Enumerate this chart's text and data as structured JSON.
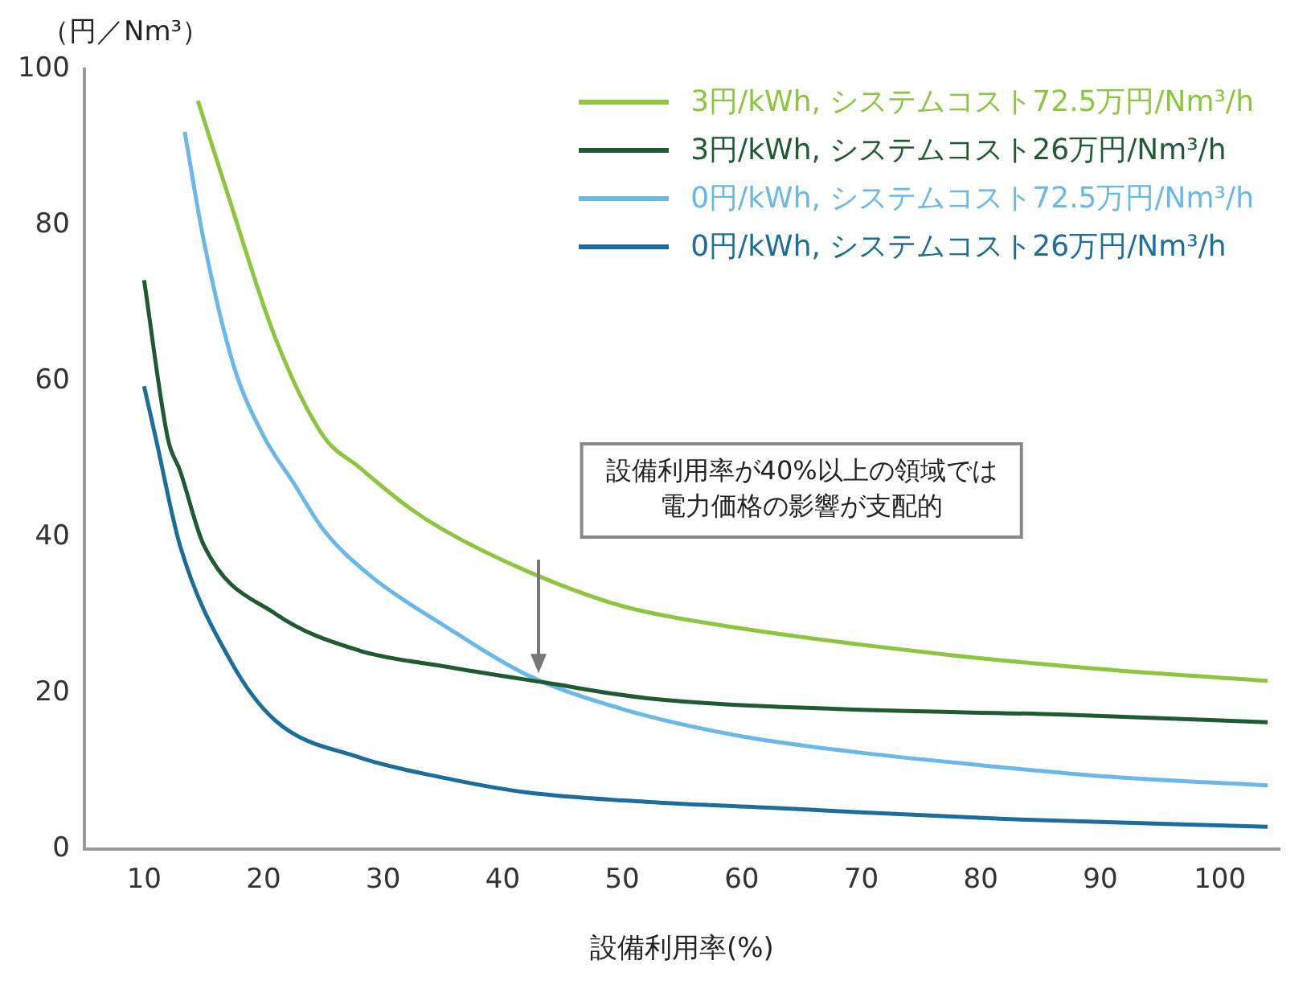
{
  "chart_data": {
    "type": "line",
    "ylabel": "（円／Nm³）",
    "xlabel": "設備利用率(%)",
    "xlim": [
      5,
      105
    ],
    "xticks": [
      10,
      20,
      30,
      40,
      50,
      60,
      70,
      80,
      90,
      100
    ],
    "ylim": [
      0,
      100
    ],
    "yticks": [
      0,
      20,
      40,
      60,
      80,
      100
    ],
    "grid": false,
    "legend": "top right",
    "marker": "none",
    "line_style": "solid",
    "annotations": [
      "設備利用率が40%以上の領域では電力価格の影響が支配的"
    ],
    "series": [
      {
        "name": "3円/kWh, システムコスト72.5万円/Nm³/h",
        "color": "#8cc63f",
        "x": [
          14.5,
          17,
          21,
          25,
          28,
          32,
          35,
          42,
          50,
          58,
          77,
          91,
          104
        ],
        "values": [
          96,
          84,
          65.5,
          53,
          49,
          44,
          41,
          35.7,
          31.2,
          28.8,
          25,
          23,
          21.6
        ]
      },
      {
        "name": "3円/kWh, システムコスト26万円/Nm³/h",
        "color": "#1f5a32",
        "x": [
          10,
          12,
          13,
          15,
          21,
          28,
          35,
          43.5,
          52,
          68,
          86.5,
          104
        ],
        "values": [
          73,
          52.6,
          48.6,
          39,
          30.2,
          25.5,
          23.5,
          21.4,
          19.4,
          18,
          17.3,
          16.3
        ]
      },
      {
        "name": "0円/kWh, システムコスト72.5万円/Nm³/h",
        "color": "#6ab8e8",
        "x": [
          13.4,
          15,
          17.5,
          20,
          22.5,
          25,
          29,
          35,
          42,
          50,
          60,
          70,
          80,
          90,
          104
        ],
        "values": [
          92,
          78,
          62,
          53,
          47,
          41,
          35,
          28.8,
          22.4,
          18,
          14.5,
          12.4,
          10.8,
          9.4,
          8.2
        ]
      },
      {
        "name": "0円/kWh, システムコスト26万円/Nm³/h",
        "color": "#1b6d9c",
        "x": [
          10,
          11,
          13,
          17.3,
          21,
          28,
          35,
          42,
          52,
          63,
          82,
          104
        ],
        "values": [
          59.4,
          52.6,
          39,
          24,
          16.5,
          11.8,
          9.2,
          7.3,
          6.1,
          5.3,
          3.9,
          2.9
        ]
      }
    ]
  }
}
